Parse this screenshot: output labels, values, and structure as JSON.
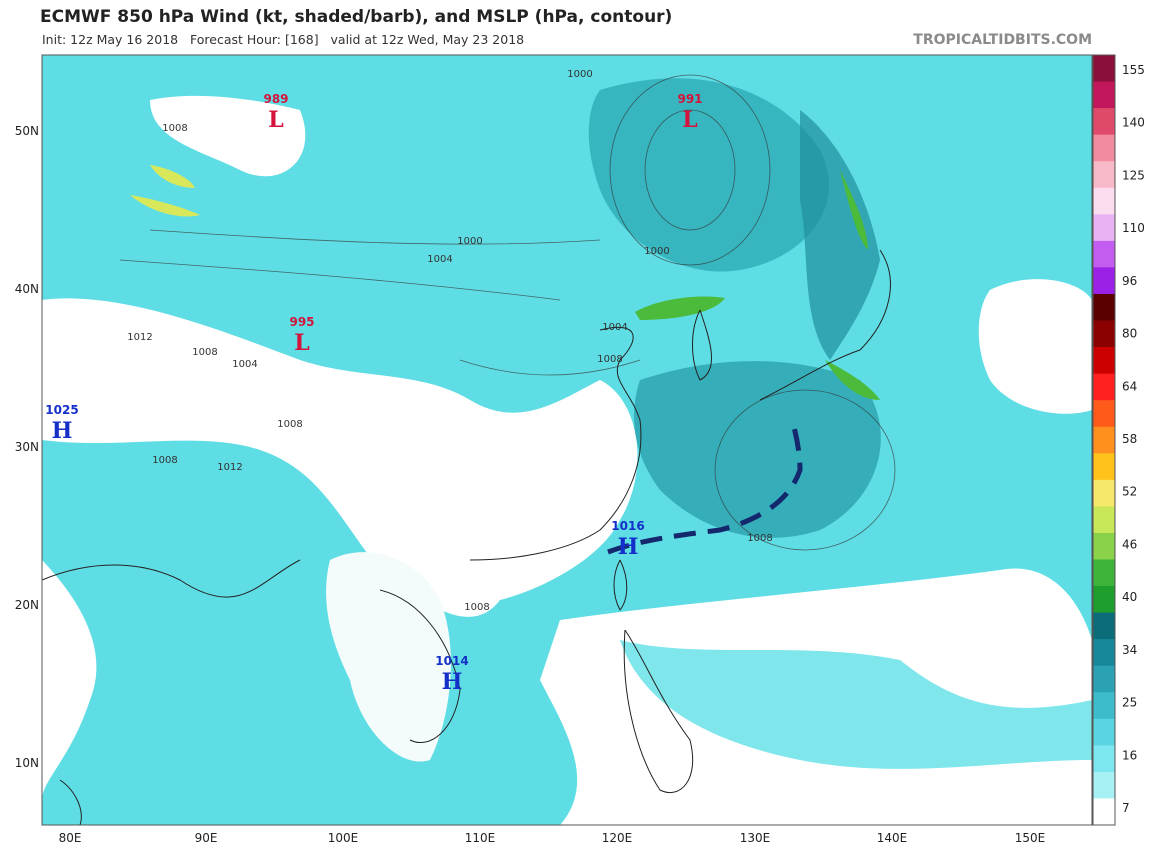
{
  "header": {
    "title": "ECMWF 850 hPa Wind (kt, shaded/barb), and MSLP (hPa, contour)",
    "subtitle": "Init: 12z May 16 2018   Forecast Hour: [168]   valid at 12z Wed, May 23 2018",
    "watermark": "TROPICALTIDBITS.COM"
  },
  "latitude_labels": [
    "50N",
    "40N",
    "30N",
    "20N",
    "10N"
  ],
  "longitude_labels": [
    "80E",
    "90E",
    "100E",
    "110E",
    "120E",
    "130E",
    "140E",
    "150E"
  ],
  "colorbar_labels": [
    "155",
    "140",
    "125",
    "110",
    "96",
    "80",
    "64",
    "58",
    "52",
    "46",
    "40",
    "34",
    "25",
    "16",
    "7"
  ],
  "pressure_centers": [
    {
      "value": "989",
      "symbol": "L"
    },
    {
      "value": "991",
      "symbol": "L"
    },
    {
      "value": "995",
      "symbol": "L"
    },
    {
      "value": "1025",
      "symbol": "H"
    },
    {
      "value": "1016",
      "symbol": "H"
    },
    {
      "value": "1014",
      "symbol": "H"
    }
  ],
  "contour_labels": [
    "1008",
    "1000",
    "1004",
    "1012",
    "1008",
    "1004",
    "1000",
    "1004",
    "1008",
    "1008",
    "1012",
    "1008",
    "1008",
    "1000",
    "1008"
  ]
}
